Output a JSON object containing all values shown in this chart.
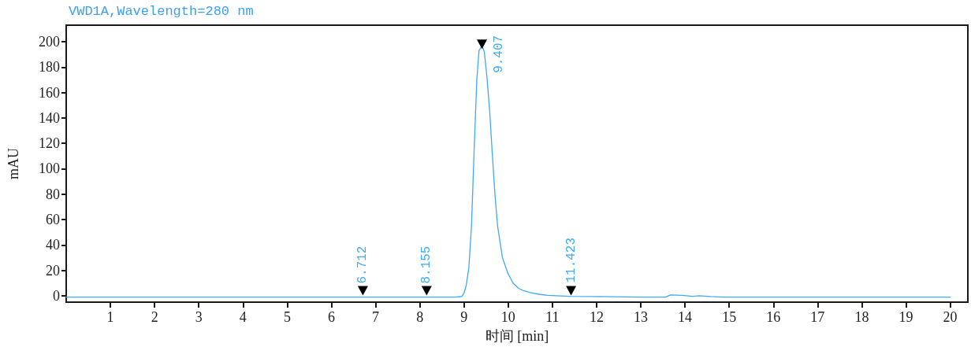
{
  "chart_data": {
    "type": "line",
    "title": "VWD1A,Wavelength=280 nm",
    "xlabel": "时间 [min]",
    "ylabel": "mAU",
    "x": [
      0,
      2,
      6.7,
      8.2,
      8.8,
      8.95,
      9.0,
      9.05,
      9.11,
      9.17,
      9.23,
      9.29,
      9.34,
      9.407,
      9.46,
      9.52,
      9.58,
      9.64,
      9.7,
      9.76,
      9.87,
      9.99,
      10.11,
      10.23,
      10.35,
      10.5,
      10.7,
      10.9,
      11.1,
      11.4,
      12.0,
      13.0,
      13.56,
      13.67,
      13.94,
      14.17,
      14.32,
      14.58,
      14.88,
      16,
      20
    ],
    "series": [
      {
        "color": "#3fa9f5",
        "marker": "none",
        "values": [
          -1,
          -1,
          -1,
          -1,
          -1,
          -0.5,
          2,
          8,
          22,
          55,
          115,
          170,
          193,
          197,
          192,
          172,
          146,
          112,
          80,
          55,
          30,
          18,
          10,
          6,
          4,
          2.5,
          1.2,
          0.4,
          0,
          -0.4,
          -0.6,
          -1,
          -1,
          0.6,
          0.3,
          -0.4,
          0,
          -0.6,
          -1,
          -1,
          -1
        ]
      },
      {
        "type": "scatter",
        "color": "#000000",
        "marker": "triangle",
        "x": [
          6.712,
          8.155,
          9.407,
          11.423
        ],
        "values": [
          4,
          4,
          198,
          4
        ]
      }
    ],
    "xlim": [
      0,
      20.4
    ],
    "ylim": [
      -5,
      213
    ],
    "xticks": [
      1,
      2,
      3,
      4,
      5,
      6,
      7,
      8,
      9,
      10,
      11,
      12,
      13,
      14,
      15,
      16,
      17,
      18,
      19,
      20
    ],
    "yticks": [
      0,
      20,
      40,
      60,
      80,
      100,
      120,
      140,
      160,
      180,
      200
    ],
    "grid": false,
    "line_style": "solid",
    "annotations": [
      {
        "text": "6.712",
        "x": 6.712,
        "y": -1
      },
      {
        "text": "8.155",
        "x": 8.155,
        "y": -1
      },
      {
        "text": "9.407",
        "x": 9.407,
        "y": 197
      },
      {
        "text": "11.423",
        "x": 11.423,
        "y": -0.4
      }
    ]
  }
}
